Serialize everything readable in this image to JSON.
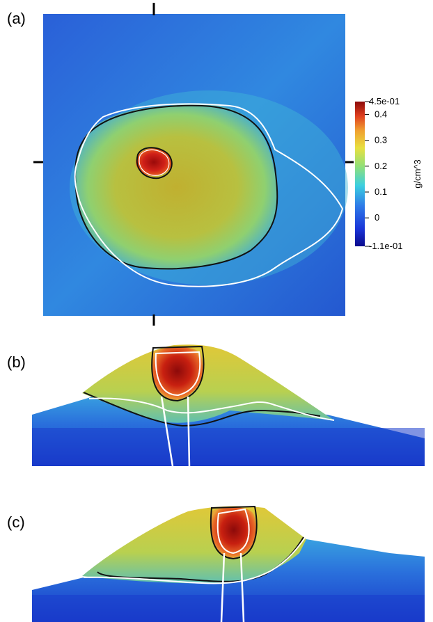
{
  "panels": {
    "a": {
      "label": "(a)"
    },
    "b": {
      "label": "(b)"
    },
    "c": {
      "label": "(c)"
    }
  },
  "colorbar": {
    "max_label": "4.5e-01",
    "min_label": "-1.1e-01",
    "ticks": [
      "0.4",
      "0.3",
      "0.2",
      "0.1",
      "0"
    ],
    "unit": "g/cm^3",
    "range": [
      -0.11,
      0.45
    ],
    "colormap": [
      "#0a0a8c",
      "#1a35d8",
      "#2e7be8",
      "#3ccfe0",
      "#8fe07a",
      "#e8e040",
      "#f0a030",
      "#e04020",
      "#8c0a0a"
    ]
  },
  "colors": {
    "contour_black": "#111111",
    "contour_white": "#ffffff",
    "background_blue": "#2a6ad8"
  }
}
